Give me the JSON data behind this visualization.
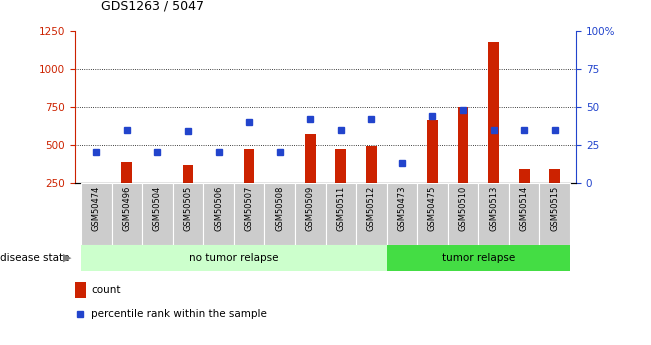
{
  "title": "GDS1263 / 5047",
  "categories": [
    "GSM50474",
    "GSM50496",
    "GSM50504",
    "GSM50505",
    "GSM50506",
    "GSM50507",
    "GSM50508",
    "GSM50509",
    "GSM50511",
    "GSM50512",
    "GSM50473",
    "GSM50475",
    "GSM50510",
    "GSM50513",
    "GSM50514",
    "GSM50515"
  ],
  "count_values": [
    248,
    390,
    248,
    370,
    248,
    475,
    248,
    575,
    470,
    495,
    248,
    665,
    750,
    1175,
    340,
    340
  ],
  "percentile_values": [
    20,
    35,
    20,
    34,
    20,
    40,
    20,
    42,
    35,
    42,
    13,
    44,
    48,
    35,
    35,
    35
  ],
  "no_tumor_count": 10,
  "tumor_count": 6,
  "bar_color": "#cc2200",
  "dot_color": "#2244cc",
  "no_tumor_color": "#ccffcc",
  "tumor_color": "#44dd44",
  "label_bg_color": "#cccccc",
  "left_ylim": [
    250,
    1250
  ],
  "left_yticks": [
    250,
    500,
    750,
    1000,
    1250
  ],
  "right_ylim": [
    0,
    100
  ],
  "right_yticks": [
    0,
    25,
    50,
    75,
    100
  ],
  "right_yticklabels": [
    "0",
    "25",
    "50",
    "75",
    "100%"
  ],
  "grid_lines": [
    500,
    750,
    1000
  ]
}
